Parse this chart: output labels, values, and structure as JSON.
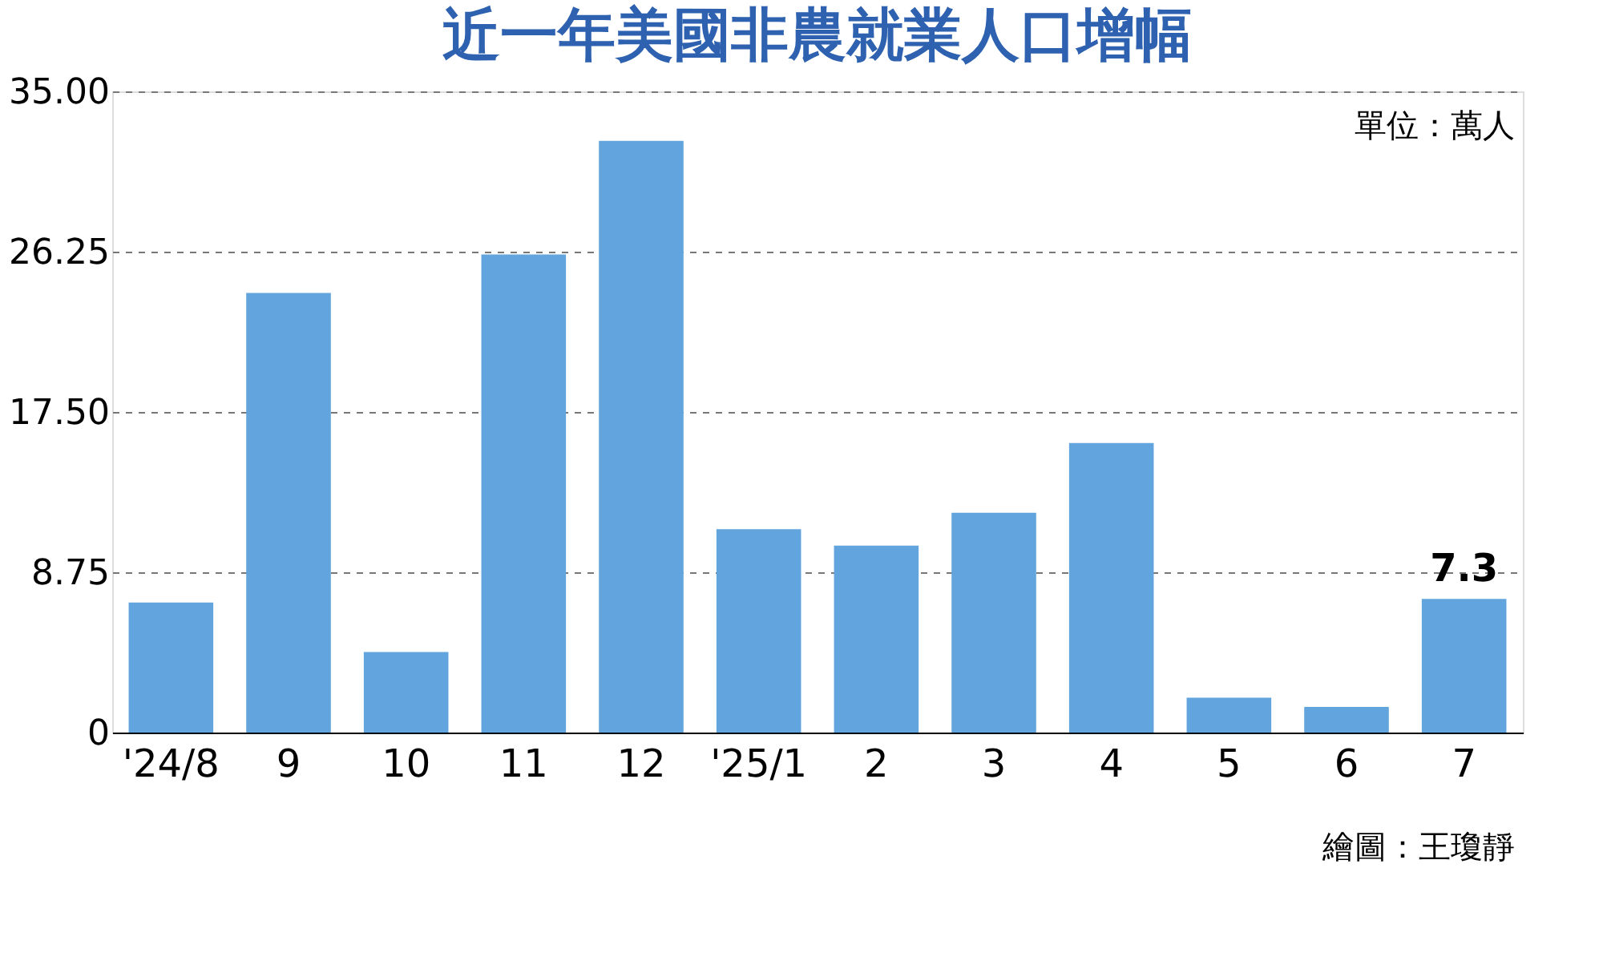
{
  "chart_data": {
    "type": "bar",
    "title": "近一年美國非農就業人口增幅",
    "categories": [
      "'24/8",
      "9",
      "10",
      "11",
      "12",
      "'25/1",
      "2",
      "3",
      "4",
      "5",
      "6",
      "7"
    ],
    "values": [
      7.1,
      24.0,
      4.4,
      26.1,
      32.3,
      11.1,
      10.2,
      12.0,
      15.8,
      1.9,
      1.4,
      7.3
    ],
    "value_labels": [
      null,
      null,
      null,
      null,
      null,
      null,
      null,
      null,
      null,
      null,
      null,
      "7.3"
    ],
    "color": "#62a5de",
    "ylim": [
      0,
      35
    ],
    "yticks": [
      {
        "value": 0,
        "label": "0"
      },
      {
        "value": 8.75,
        "label": "8.75"
      },
      {
        "value": 17.5,
        "label": "17.50"
      },
      {
        "value": 26.25,
        "label": "26.25"
      },
      {
        "value": 35,
        "label": "35.00"
      }
    ],
    "grid": "y",
    "annotations": [
      "單位：萬人",
      "繪圖：王瓊靜"
    ]
  }
}
